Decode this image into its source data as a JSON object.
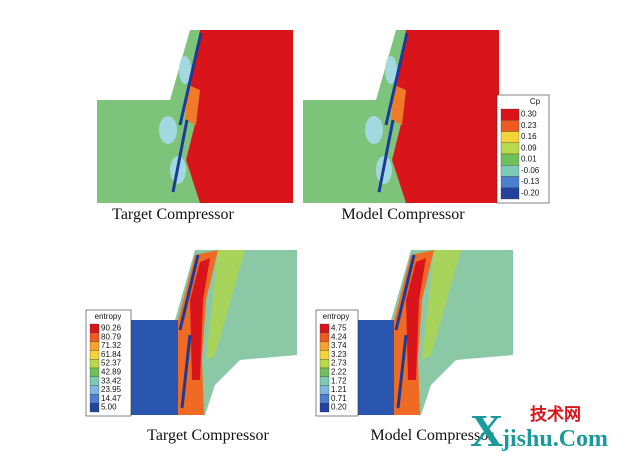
{
  "panels": [
    {
      "caption": "Target Compressor"
    },
    {
      "caption": "Model Compressor"
    },
    {
      "caption": "Target Compressor"
    },
    {
      "caption": "Model Compressor"
    }
  ],
  "legends": [
    {
      "title": "Cp",
      "labels": [
        "0.30",
        "0.23",
        "0.16",
        "0.09",
        "0.01",
        "-0.06",
        "-0.13",
        "-0.20"
      ]
    },
    {
      "title": "entropy",
      "labels": [
        "90.26",
        "80.79",
        "71.32",
        "61.84",
        "52.37",
        "42.89",
        "33.42",
        "23.95",
        "14.47",
        "5.00"
      ]
    },
    {
      "title": "entropy",
      "labels": [
        "4.75",
        "4.24",
        "3.74",
        "3.23",
        "2.73",
        "2.22",
        "1.72",
        "1.21",
        "0.71",
        "0.20"
      ]
    }
  ],
  "watermark": {
    "mark": "X",
    "cn": "技术网",
    "site": "jishu.Com"
  }
}
